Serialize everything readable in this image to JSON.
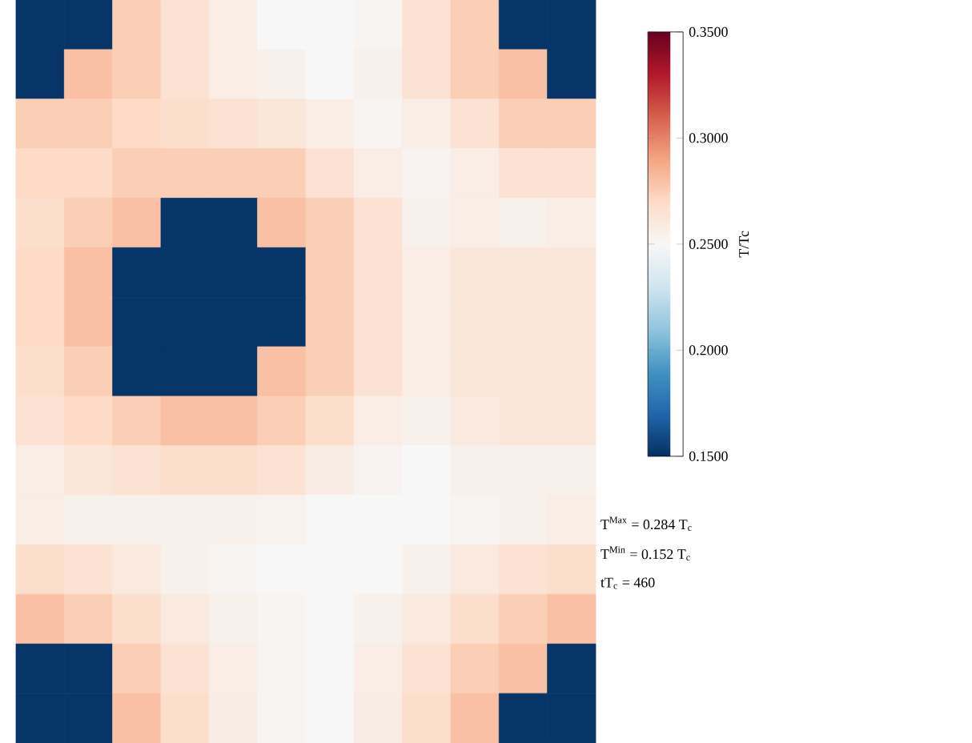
{
  "chart_data": {
    "type": "heatmap",
    "categories": [
      null,
      null,
      null,
      null,
      null,
      null,
      null,
      null,
      null,
      null,
      null,
      null
    ],
    "y_categories": [
      null,
      null,
      null,
      null,
      null,
      null,
      null,
      null,
      null,
      null,
      null,
      null,
      null,
      null,
      null
    ],
    "cells": [
      [
        0.152,
        0.152,
        0.275,
        0.265,
        0.257,
        0.25,
        0.25,
        0.252,
        0.265,
        0.275,
        0.152,
        0.152
      ],
      [
        0.152,
        0.28,
        0.275,
        0.265,
        0.257,
        0.255,
        0.25,
        0.255,
        0.265,
        0.275,
        0.28,
        0.152
      ],
      [
        0.275,
        0.275,
        0.27,
        0.268,
        0.265,
        0.262,
        0.257,
        0.252,
        0.257,
        0.265,
        0.275,
        0.275
      ],
      [
        0.27,
        0.27,
        0.275,
        0.275,
        0.275,
        0.275,
        0.265,
        0.257,
        0.253,
        0.257,
        0.265,
        0.265
      ],
      [
        0.268,
        0.275,
        0.28,
        0.152,
        0.152,
        0.28,
        0.275,
        0.265,
        0.255,
        0.257,
        0.255,
        0.257
      ],
      [
        0.27,
        0.28,
        0.152,
        0.152,
        0.152,
        0.152,
        0.275,
        0.265,
        0.257,
        0.262,
        0.262,
        0.262
      ],
      [
        0.27,
        0.28,
        0.152,
        0.152,
        0.152,
        0.152,
        0.275,
        0.265,
        0.257,
        0.262,
        0.262,
        0.262
      ],
      [
        0.268,
        0.275,
        0.152,
        0.152,
        0.152,
        0.28,
        0.275,
        0.265,
        0.257,
        0.262,
        0.262,
        0.262
      ],
      [
        0.265,
        0.27,
        0.275,
        0.28,
        0.28,
        0.275,
        0.268,
        0.257,
        0.255,
        0.26,
        0.262,
        0.262
      ],
      [
        0.257,
        0.262,
        0.265,
        0.268,
        0.268,
        0.265,
        0.258,
        0.253,
        0.25,
        0.255,
        0.255,
        0.255
      ],
      [
        0.257,
        0.255,
        0.255,
        0.255,
        0.255,
        0.254,
        0.25,
        0.25,
        0.25,
        0.252,
        0.255,
        0.257
      ],
      [
        0.268,
        0.265,
        0.26,
        0.255,
        0.252,
        0.25,
        0.25,
        0.25,
        0.255,
        0.26,
        0.265,
        0.268
      ],
      [
        0.28,
        0.275,
        0.268,
        0.26,
        0.255,
        0.252,
        0.25,
        0.255,
        0.26,
        0.268,
        0.275,
        0.28
      ],
      [
        0.152,
        0.152,
        0.275,
        0.265,
        0.257,
        0.252,
        0.25,
        0.257,
        0.265,
        0.275,
        0.28,
        0.152
      ],
      [
        0.152,
        0.152,
        0.28,
        0.268,
        0.258,
        0.252,
        0.25,
        0.258,
        0.268,
        0.28,
        0.152,
        0.152
      ]
    ],
    "clim": [
      0.15,
      0.35
    ],
    "cticks": [
      {
        "value": 0.15,
        "label": "0.1500"
      },
      {
        "value": 0.2,
        "label": "0.2000"
      },
      {
        "value": 0.25,
        "label": "0.2500"
      },
      {
        "value": 0.3,
        "label": "0.3000"
      },
      {
        "value": 0.35,
        "label": "0.3500"
      }
    ],
    "clabel": "T/Tc",
    "annotations": [
      "T$^{Max}$ = 0.284 T$_{c}$",
      "T$^{Min}$ = 0.152 T$_{c}$",
      "tT$_{c}$ = 460"
    ]
  }
}
